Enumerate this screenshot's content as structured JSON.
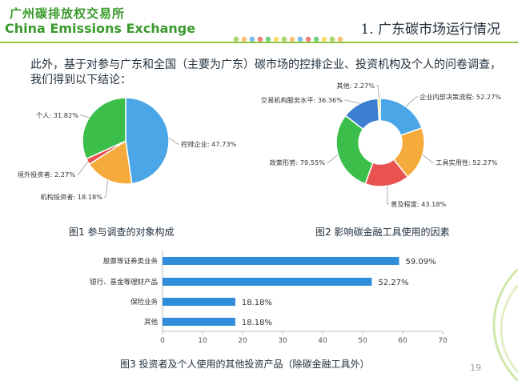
{
  "header": {
    "org_cn": "广州碳排放权交易所",
    "org_en": "China Emissions Exchange",
    "section_title": "1. 广东碳市场运行情况"
  },
  "intro": {
    "text": "此外，基于对参与广东和全国（主要为广东）碳市场的控排企业、投资机构及个人的问卷调查，我们得到以下结论："
  },
  "colors": {
    "brand_green": "#3a9a2c",
    "blue": "#4aa6e6",
    "orange": "#f5ab3c",
    "red": "#e8524f",
    "green": "#3bbf4a",
    "yellow": "#f2d43a",
    "navy": "#3c7fd0",
    "bar": "#2f8ddb"
  },
  "captions": {
    "fig1": "图1 参与调查的对象构成",
    "fig2": "图2 影响碳金融工具使用的因素",
    "fig3": "图3 投资者及个人使用的其他投资产品（除碳金融工具外）"
  },
  "page_number": "19",
  "chart_data": [
    {
      "type": "pie",
      "title": "图1 参与调查的对象构成",
      "slices": [
        {
          "label": "控排企业",
          "value": 47.73,
          "display": "控排企业: 47.73%",
          "color": "#4aa6e6"
        },
        {
          "label": "机构投资者",
          "value": 18.18,
          "display": "机构投资者: 18.18%",
          "color": "#f5ab3c"
        },
        {
          "label": "境外投资者",
          "value": 2.27,
          "display": "境外投资者: 2.27%",
          "color": "#e8524f"
        },
        {
          "label": "个人",
          "value": 31.82,
          "display": "个人: 31.82%",
          "color": "#3bbf4a"
        }
      ]
    },
    {
      "type": "pie",
      "subtype": "donut",
      "title": "图2 影响碳金融工具使用的因素",
      "slices": [
        {
          "label": "企业内部决策流程",
          "value": 52.27,
          "display": "企业内部决策流程: 52.27%",
          "color": "#4aa6e6"
        },
        {
          "label": "工具实用性",
          "value": 52.27,
          "display": "工具实用性: 52.27%",
          "color": "#f5ab3c"
        },
        {
          "label": "普及程度",
          "value": 43.18,
          "display": "普及程度: 43.18%",
          "color": "#e8524f"
        },
        {
          "label": "政策形势",
          "value": 79.55,
          "display": "政策形势: 79.55%",
          "color": "#3bbf4a"
        },
        {
          "label": "交易机构服务水平",
          "value": 36.36,
          "display": "交易机构服务水平: 36.36%",
          "color": "#3c7fd0"
        },
        {
          "label": "其他",
          "value": 2.27,
          "display": "其他: 2.27%",
          "color": "#f2d43a"
        }
      ]
    },
    {
      "type": "bar",
      "orientation": "horizontal",
      "title": "图3 投资者及个人使用的其他投资产品（除碳金融工具外）",
      "categories": [
        "股票等证券类业务",
        "银行、基金等理财产品",
        "保险业务",
        "其他"
      ],
      "values": [
        59.09,
        52.27,
        18.18,
        18.18
      ],
      "value_labels": [
        "59.09%",
        "52.27%",
        "18.18%",
        "18.18%"
      ],
      "xlim": [
        0,
        70
      ],
      "xticks": [
        "0",
        "10",
        "20",
        "30",
        "40",
        "50",
        "60",
        "70"
      ],
      "grid": false
    }
  ]
}
